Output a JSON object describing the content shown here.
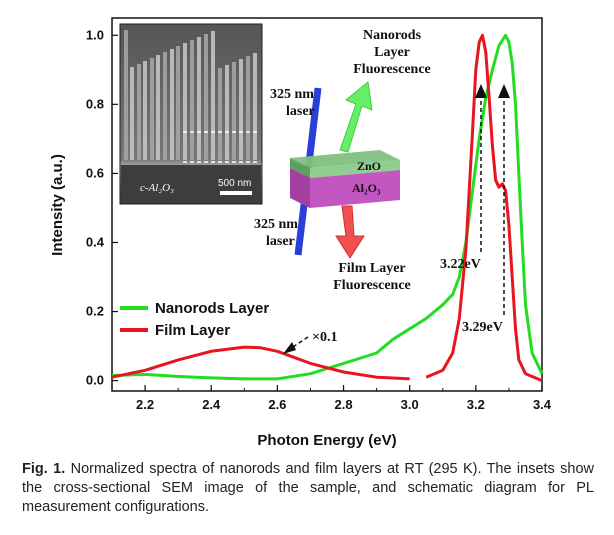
{
  "chart_data": {
    "type": "line",
    "xlabel": "Photon Energy (eV)",
    "ylabel": "Intensity (a.u.)",
    "xlim": [
      2.1,
      3.4
    ],
    "ylim": [
      -0.03,
      1.05
    ],
    "xticks": [
      "2.2",
      "2.4",
      "2.6",
      "2.8",
      "3.0",
      "3.2",
      "3.4"
    ],
    "yticks": [
      "0.0",
      "0.2",
      "0.4",
      "0.6",
      "0.8",
      "1.0"
    ],
    "legend_position": "lower-left",
    "series": [
      {
        "name": "Nanorods Layer",
        "color": "#22dd22",
        "points": [
          [
            2.1,
            0.015
          ],
          [
            2.2,
            0.018
          ],
          [
            2.3,
            0.012
          ],
          [
            2.4,
            0.008
          ],
          [
            2.5,
            0.005
          ],
          [
            2.6,
            0.005
          ],
          [
            2.7,
            0.02
          ],
          [
            2.8,
            0.05
          ],
          [
            2.9,
            0.08
          ],
          [
            2.95,
            0.12
          ],
          [
            3.0,
            0.15
          ],
          [
            3.05,
            0.18
          ],
          [
            3.1,
            0.22
          ],
          [
            3.13,
            0.25
          ],
          [
            3.15,
            0.3
          ],
          [
            3.17,
            0.4
          ],
          [
            3.19,
            0.55
          ],
          [
            3.21,
            0.7
          ],
          [
            3.23,
            0.82
          ],
          [
            3.25,
            0.9
          ],
          [
            3.27,
            0.97
          ],
          [
            3.29,
            1.0
          ],
          [
            3.3,
            0.98
          ],
          [
            3.31,
            0.92
          ],
          [
            3.32,
            0.8
          ],
          [
            3.33,
            0.6
          ],
          [
            3.34,
            0.4
          ],
          [
            3.35,
            0.22
          ],
          [
            3.37,
            0.08
          ],
          [
            3.4,
            0.02
          ]
        ]
      },
      {
        "name": "Film Layer",
        "color": "#e8141e",
        "points": [
          [
            2.1,
            0.01
          ],
          [
            2.2,
            0.03
          ],
          [
            2.3,
            0.06
          ],
          [
            2.4,
            0.085
          ],
          [
            2.5,
            0.097
          ],
          [
            2.55,
            0.095
          ],
          [
            2.6,
            0.085
          ],
          [
            2.7,
            0.05
          ],
          [
            2.8,
            0.025
          ],
          [
            2.9,
            0.01
          ],
          [
            3.0,
            0.005
          ]
        ],
        "points_uv": [
          [
            3.05,
            0.01
          ],
          [
            3.1,
            0.03
          ],
          [
            3.13,
            0.08
          ],
          [
            3.15,
            0.18
          ],
          [
            3.17,
            0.38
          ],
          [
            3.19,
            0.72
          ],
          [
            3.2,
            0.9
          ],
          [
            3.21,
            0.98
          ],
          [
            3.22,
            1.0
          ],
          [
            3.23,
            0.95
          ],
          [
            3.24,
            0.82
          ],
          [
            3.25,
            0.68
          ],
          [
            3.26,
            0.58
          ],
          [
            3.27,
            0.56
          ],
          [
            3.28,
            0.57
          ],
          [
            3.29,
            0.55
          ],
          [
            3.3,
            0.45
          ],
          [
            3.31,
            0.3
          ],
          [
            3.32,
            0.15
          ],
          [
            3.33,
            0.06
          ],
          [
            3.35,
            0.02
          ],
          [
            3.4,
            0.0
          ]
        ]
      }
    ],
    "annotations": [
      {
        "text": "×0.1",
        "x": 2.62,
        "y": 0.14
      },
      {
        "text": "3.22eV",
        "x": 3.22,
        "y": 0.35
      },
      {
        "text": "3.29eV",
        "x": 3.29,
        "y": 0.16
      }
    ]
  },
  "inset_sem": {
    "substrate_label": "c-Al₂O₃",
    "scale_label": "500 nm"
  },
  "inset_schematic": {
    "top_laser": "325 nm\nlaser",
    "bottom_laser": "325 nm\nlaser",
    "top_emission": "Nanorods\nLayer\nFluorescence",
    "bottom_emission": "Film Layer\nFluorescence",
    "zno_label": "ZnO",
    "al2o3_label": "Al₂O₃"
  },
  "caption": {
    "prefix": "Fig. 1.",
    "text": " Normalized spectra of nanorods and film layers at RT (295 K). The insets show the cross-sectional SEM image of the sample, and schematic diagram for PL measurement configurations."
  }
}
